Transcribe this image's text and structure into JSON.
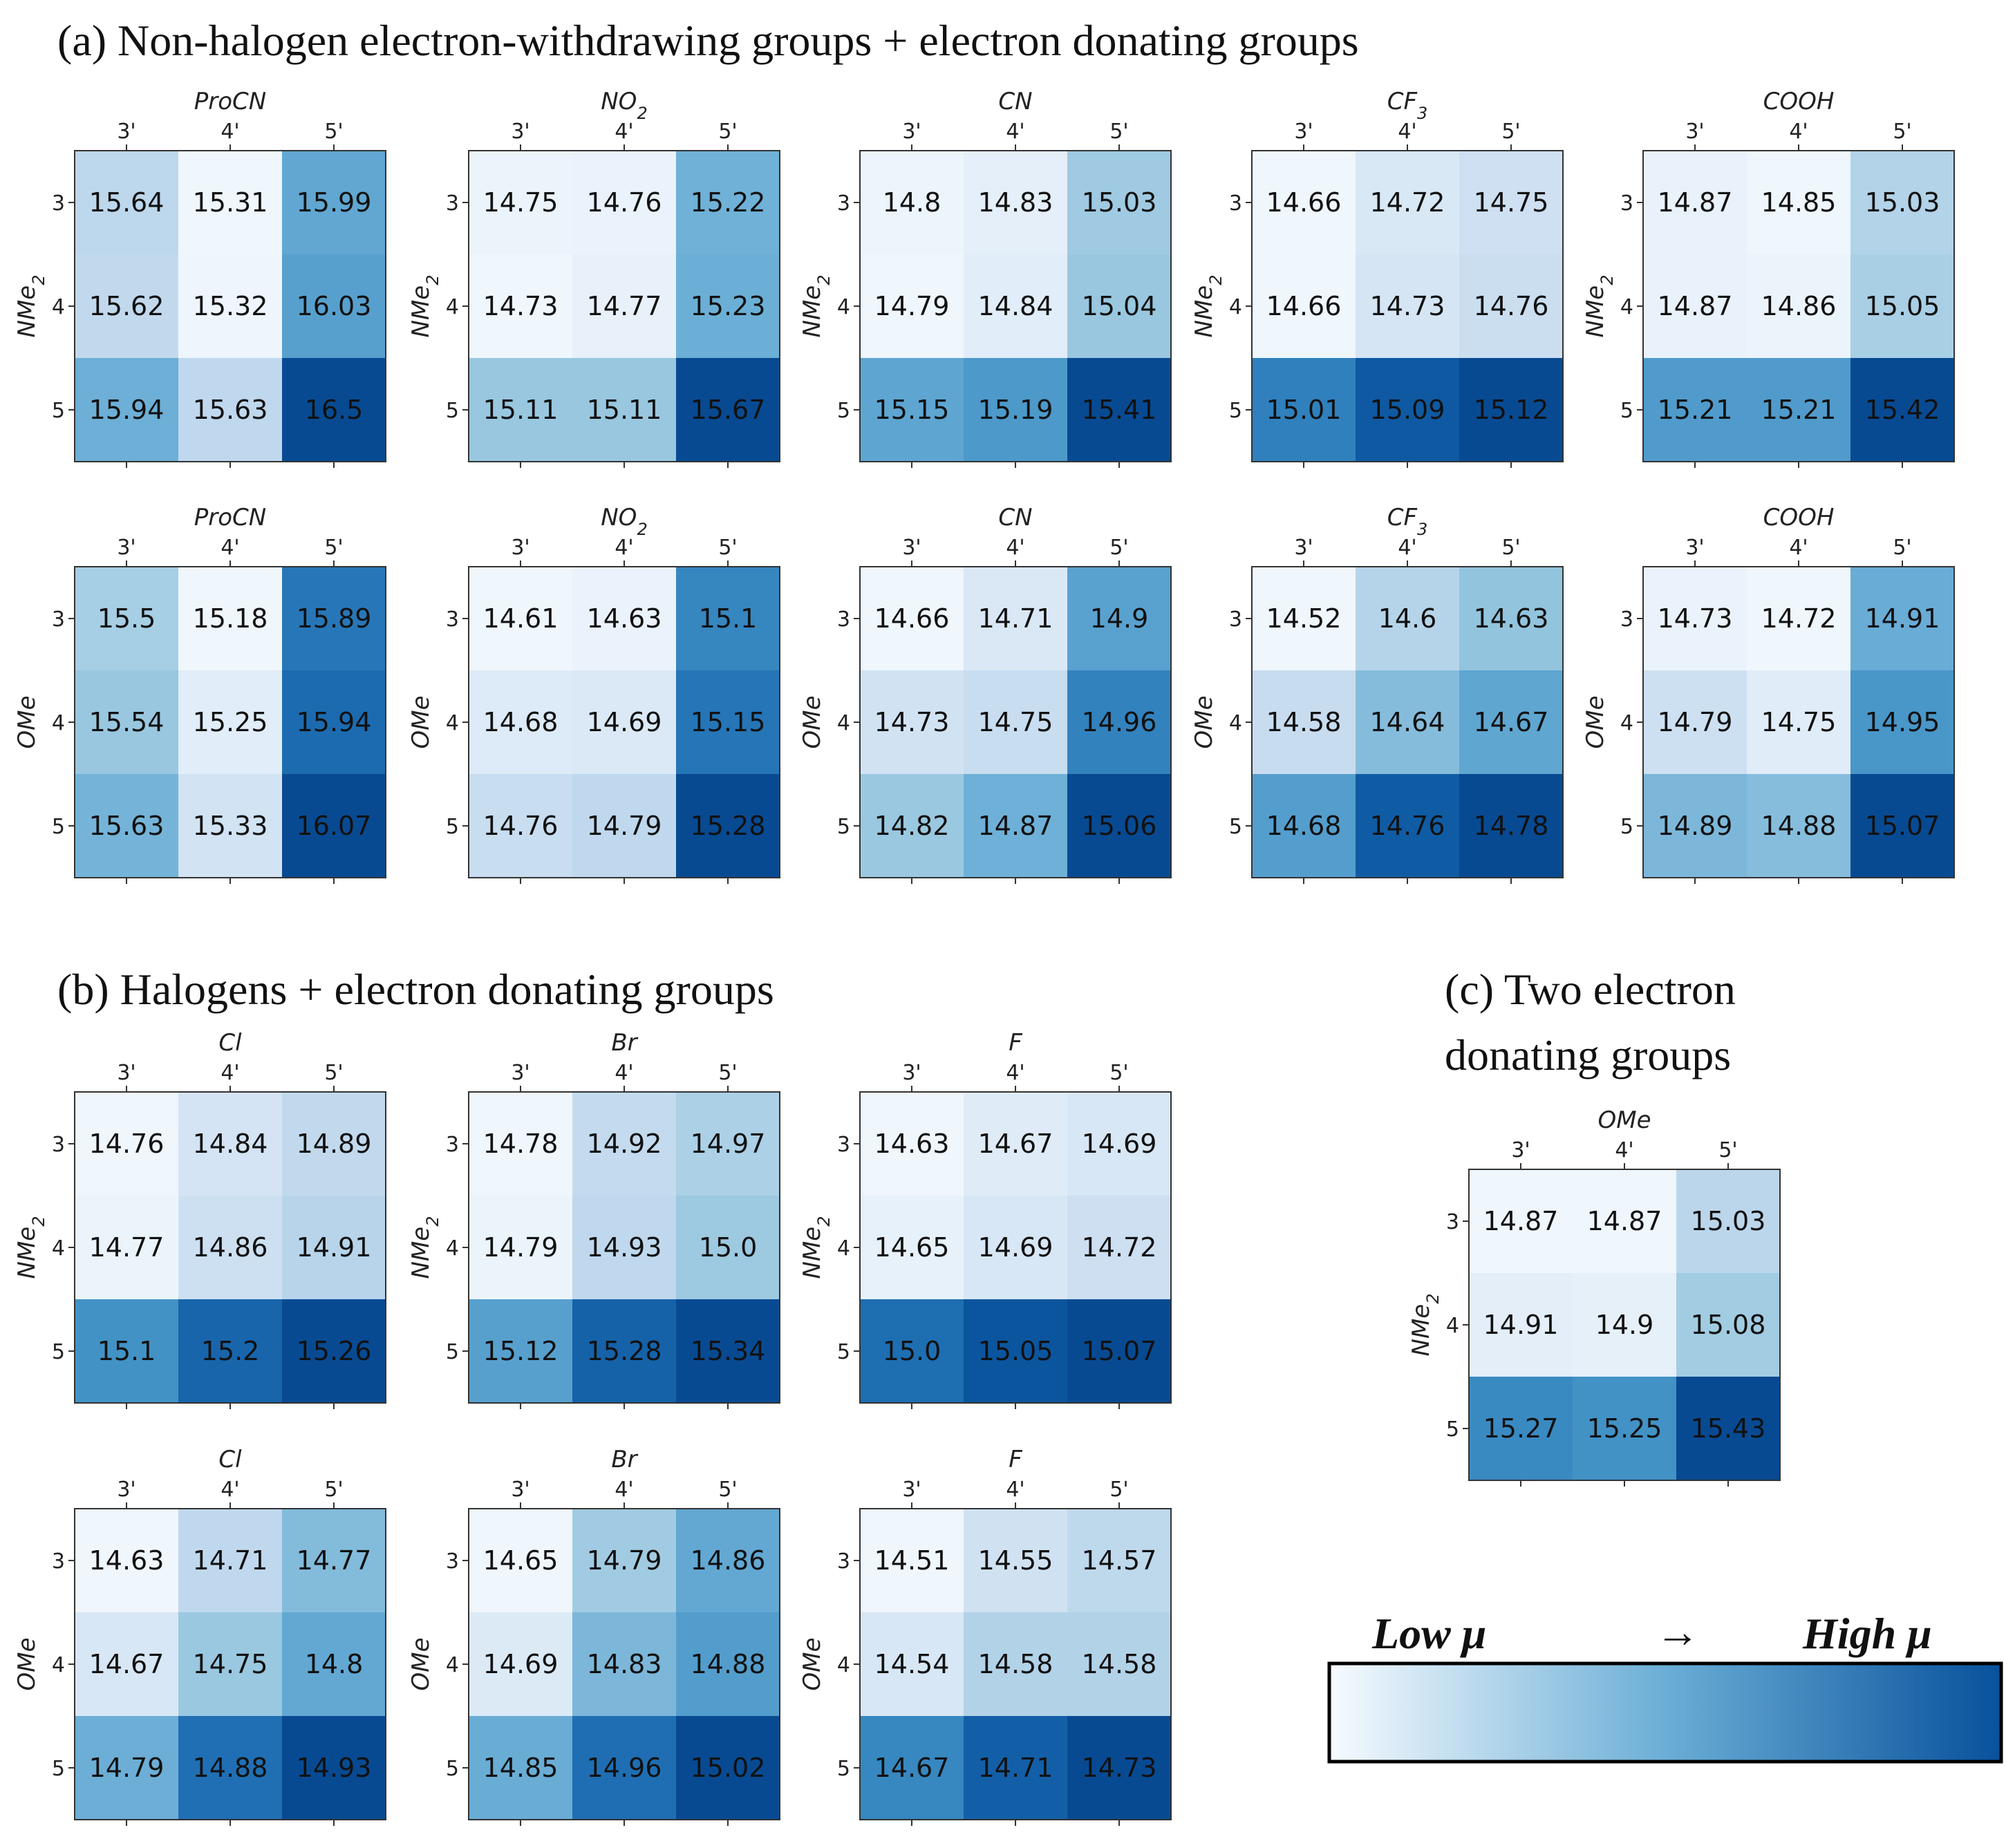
{
  "sections": {
    "a": "(a) Non-halogen electron-withdrawing groups + electron donating groups",
    "b": "(b) Halogens + electron donating groups",
    "c_line1": "(c) Two electron",
    "c_line2": "donating groups"
  },
  "colorbar": {
    "low_label": "Low μ",
    "arrow": "→",
    "high_label": "High μ",
    "color_low": "#f7fbff",
    "color_mid": "#6baed6",
    "color_high": "#08519c"
  },
  "col_ticks": [
    "3'",
    "4'",
    "5'"
  ],
  "row_ticks": [
    "3",
    "4",
    "5"
  ],
  "chart_data": [
    {
      "type": "heatmap",
      "section": "a",
      "title": "ProCN",
      "ylabel": "NMe2",
      "values": [
        [
          "15.64",
          "15.31",
          "15.99"
        ],
        [
          "15.62",
          "15.32",
          "16.03"
        ],
        [
          "15.94",
          "15.63",
          "16.5"
        ]
      ]
    },
    {
      "type": "heatmap",
      "section": "a",
      "title": "NO2",
      "ylabel": "NMe2",
      "values": [
        [
          "14.75",
          "14.76",
          "15.22"
        ],
        [
          "14.73",
          "14.77",
          "15.23"
        ],
        [
          "15.11",
          "15.11",
          "15.67"
        ]
      ]
    },
    {
      "type": "heatmap",
      "section": "a",
      "title": "CN",
      "ylabel": "NMe2",
      "values": [
        [
          "14.8",
          "14.83",
          "15.03"
        ],
        [
          "14.79",
          "14.84",
          "15.04"
        ],
        [
          "15.15",
          "15.19",
          "15.41"
        ]
      ]
    },
    {
      "type": "heatmap",
      "section": "a",
      "title": "CF3",
      "ylabel": "NMe2",
      "values": [
        [
          "14.66",
          "14.72",
          "14.75"
        ],
        [
          "14.66",
          "14.73",
          "14.76"
        ],
        [
          "15.01",
          "15.09",
          "15.12"
        ]
      ]
    },
    {
      "type": "heatmap",
      "section": "a",
      "title": "COOH",
      "ylabel": "NMe2",
      "values": [
        [
          "14.87",
          "14.85",
          "15.03"
        ],
        [
          "14.87",
          "14.86",
          "15.05"
        ],
        [
          "15.21",
          "15.21",
          "15.42"
        ]
      ]
    },
    {
      "type": "heatmap",
      "section": "a",
      "title": "ProCN",
      "ylabel": "OMe",
      "values": [
        [
          "15.5",
          "15.18",
          "15.89"
        ],
        [
          "15.54",
          "15.25",
          "15.94"
        ],
        [
          "15.63",
          "15.33",
          "16.07"
        ]
      ]
    },
    {
      "type": "heatmap",
      "section": "a",
      "title": "NO2",
      "ylabel": "OMe",
      "values": [
        [
          "14.61",
          "14.63",
          "15.1"
        ],
        [
          "14.68",
          "14.69",
          "15.15"
        ],
        [
          "14.76",
          "14.79",
          "15.28"
        ]
      ]
    },
    {
      "type": "heatmap",
      "section": "a",
      "title": "CN",
      "ylabel": "OMe",
      "values": [
        [
          "14.66",
          "14.71",
          "14.9"
        ],
        [
          "14.73",
          "14.75",
          "14.96"
        ],
        [
          "14.82",
          "14.87",
          "15.06"
        ]
      ]
    },
    {
      "type": "heatmap",
      "section": "a",
      "title": "CF3",
      "ylabel": "OMe",
      "values": [
        [
          "14.52",
          "14.6",
          "14.63"
        ],
        [
          "14.58",
          "14.64",
          "14.67"
        ],
        [
          "14.68",
          "14.76",
          "14.78"
        ]
      ]
    },
    {
      "type": "heatmap",
      "section": "a",
      "title": "COOH",
      "ylabel": "OMe",
      "values": [
        [
          "14.73",
          "14.72",
          "14.91"
        ],
        [
          "14.79",
          "14.75",
          "14.95"
        ],
        [
          "14.89",
          "14.88",
          "15.07"
        ]
      ]
    },
    {
      "type": "heatmap",
      "section": "b",
      "title": "Cl",
      "ylabel": "NMe2",
      "values": [
        [
          "14.76",
          "14.84",
          "14.89"
        ],
        [
          "14.77",
          "14.86",
          "14.91"
        ],
        [
          "15.1",
          "15.2",
          "15.26"
        ]
      ]
    },
    {
      "type": "heatmap",
      "section": "b",
      "title": "Br",
      "ylabel": "NMe2",
      "values": [
        [
          "14.78",
          "14.92",
          "14.97"
        ],
        [
          "14.79",
          "14.93",
          "15.0"
        ],
        [
          "15.12",
          "15.28",
          "15.34"
        ]
      ]
    },
    {
      "type": "heatmap",
      "section": "b",
      "title": "F",
      "ylabel": "NMe2",
      "values": [
        [
          "14.63",
          "14.67",
          "14.69"
        ],
        [
          "14.65",
          "14.69",
          "14.72"
        ],
        [
          "15.0",
          "15.05",
          "15.07"
        ]
      ]
    },
    {
      "type": "heatmap",
      "section": "b",
      "title": "Cl",
      "ylabel": "OMe",
      "values": [
        [
          "14.63",
          "14.71",
          "14.77"
        ],
        [
          "14.67",
          "14.75",
          "14.8"
        ],
        [
          "14.79",
          "14.88",
          "14.93"
        ]
      ]
    },
    {
      "type": "heatmap",
      "section": "b",
      "title": "Br",
      "ylabel": "OMe",
      "values": [
        [
          "14.65",
          "14.79",
          "14.86"
        ],
        [
          "14.69",
          "14.83",
          "14.88"
        ],
        [
          "14.85",
          "14.96",
          "15.02"
        ]
      ]
    },
    {
      "type": "heatmap",
      "section": "b",
      "title": "F",
      "ylabel": "OMe",
      "values": [
        [
          "14.51",
          "14.55",
          "14.57"
        ],
        [
          "14.54",
          "14.58",
          "14.58"
        ],
        [
          "14.67",
          "14.71",
          "14.73"
        ]
      ]
    },
    {
      "type": "heatmap",
      "section": "c",
      "title": "OMe",
      "ylabel": "NMe2",
      "values": [
        [
          "14.87",
          "14.87",
          "15.03"
        ],
        [
          "14.91",
          "14.9",
          "15.08"
        ],
        [
          "15.27",
          "15.25",
          "15.43"
        ]
      ]
    }
  ]
}
